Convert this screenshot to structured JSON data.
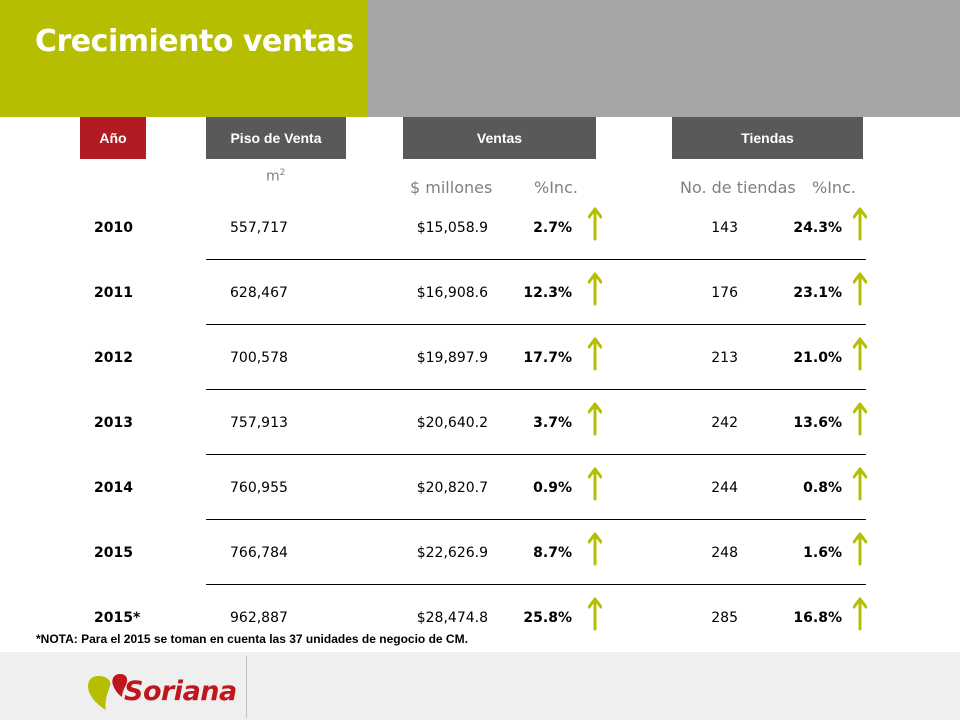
{
  "title": "Crecimiento ventas",
  "headers": {
    "anio": "Año",
    "piso": "Piso de Venta",
    "ventas": "Ventas",
    "tiendas": "Tiendas"
  },
  "subheaders": {
    "m2_base": "m",
    "m2_exp": "2",
    "millones": "$ millones",
    "inc_ventas": "%Inc.",
    "no_tiendas": "No. de tiendas",
    "inc_tiendas": "%Inc."
  },
  "rows": [
    {
      "year": "2010",
      "piso": "557,717",
      "ventas": "$15,058.9",
      "inc_ventas": "2.7%",
      "tiendas": "143",
      "inc_tiendas": "24.3%"
    },
    {
      "year": "2011",
      "piso": "628,467",
      "ventas": "$16,908.6",
      "inc_ventas": "12.3%",
      "tiendas": "176",
      "inc_tiendas": "23.1%"
    },
    {
      "year": "2012",
      "piso": "700,578",
      "ventas": "$19,897.9",
      "inc_ventas": "17.7%",
      "tiendas": "213",
      "inc_tiendas": "21.0%"
    },
    {
      "year": "2013",
      "piso": "757,913",
      "ventas": "$20,640.2",
      "inc_ventas": "3.7%",
      "tiendas": "242",
      "inc_tiendas": "13.6%"
    },
    {
      "year": "2014",
      "piso": "760,955",
      "ventas": "$20,820.7",
      "inc_ventas": "0.9%",
      "tiendas": "244",
      "inc_tiendas": "0.8%"
    },
    {
      "year": "2015",
      "piso": "766,784",
      "ventas": "$22,626.9",
      "inc_ventas": "8.7%",
      "tiendas": "248",
      "inc_tiendas": "1.6%"
    },
    {
      "year": "2015*",
      "piso": "962,887",
      "ventas": "$28,474.8",
      "inc_ventas": "25.8%",
      "tiendas": "285",
      "inc_tiendas": "16.8%"
    }
  ],
  "note": "*NOTA: Para el 2015 se toman en cuenta las 37 unidades de negocio de CM.",
  "logo": {
    "text": "Soriana"
  },
  "icons": {
    "trend": "up-arrow-icon",
    "logo_mark": "soriana-heart-icon"
  },
  "colors": {
    "accent": "#b5be00",
    "header_red": "#b31b23",
    "header_gray": "#595959",
    "banner_gray": "#a6a6a6",
    "logo_red": "#c0161d"
  }
}
